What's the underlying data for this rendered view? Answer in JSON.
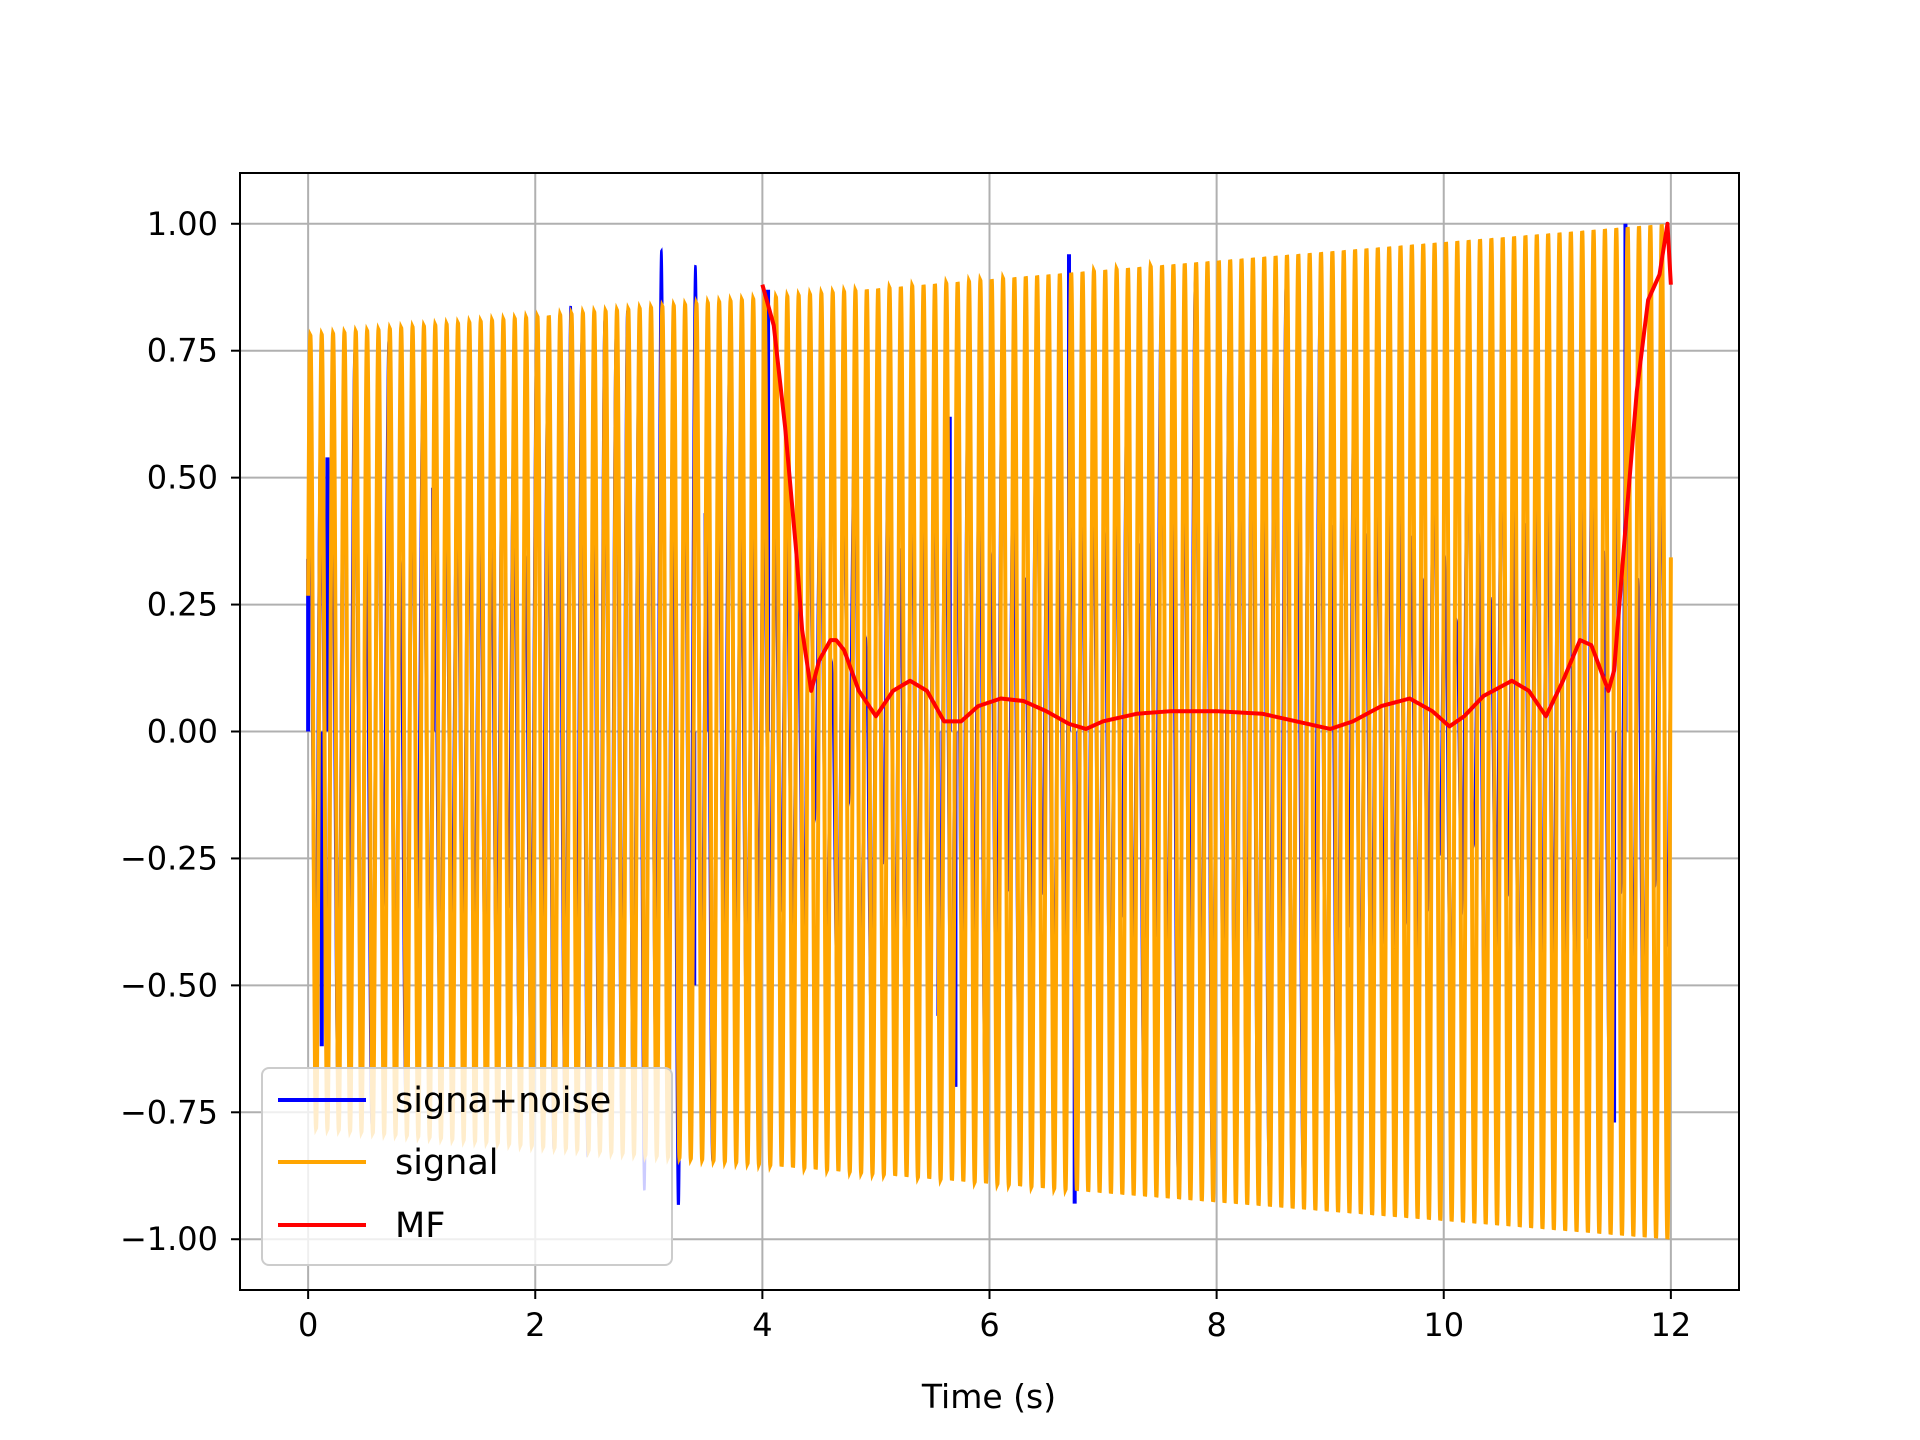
{
  "chart_data": {
    "type": "line",
    "title": "",
    "xlabel": "Time (s)",
    "ylabel": "",
    "xlim": [
      -0.6,
      12.6
    ],
    "ylim": [
      -1.1,
      1.1
    ],
    "xticks": [
      0,
      2,
      4,
      6,
      8,
      10,
      12
    ],
    "xtick_labels": [
      "0",
      "2",
      "4",
      "6",
      "8",
      "10",
      "12"
    ],
    "yticks": [
      1.0,
      0.75,
      0.5,
      0.25,
      0.0,
      -0.25,
      -0.5,
      -0.75,
      -1.0
    ],
    "ytick_labels": [
      "1.00",
      "0.75",
      "0.50",
      "0.25",
      "0.00",
      "−0.25",
      "−0.50",
      "−0.75",
      "−1.00"
    ],
    "grid": true,
    "legend_position": "lower-left",
    "series": [
      {
        "name": "signa+noise",
        "color": "#0000ff",
        "style": "noisy oscillation, t from 0 to 12 s, peaks between about -0.93 and 1.00",
        "samples": [
          {
            "x": 0.0,
            "y": 0.34
          },
          {
            "x": 0.12,
            "y": -0.62
          },
          {
            "x": 0.17,
            "y": 0.54
          },
          {
            "x": 1.1,
            "y": 0.48
          },
          {
            "x": 3.4,
            "y": -0.5
          },
          {
            "x": 3.5,
            "y": 0.43
          },
          {
            "x": 4.05,
            "y": 0.87
          },
          {
            "x": 5.55,
            "y": -0.56
          },
          {
            "x": 5.65,
            "y": 0.62
          },
          {
            "x": 5.7,
            "y": -0.7
          },
          {
            "x": 6.7,
            "y": 0.94
          },
          {
            "x": 6.75,
            "y": -0.93
          },
          {
            "x": 11.6,
            "y": 1.0
          },
          {
            "x": 11.5,
            "y": -0.77
          }
        ]
      },
      {
        "name": "signal",
        "color": "#ffa500",
        "style": "sinusoid, t from 0 to 12 s, about 120 cycles, amplitude growing linearly from 0.78 to 1.00"
      },
      {
        "name": "MF",
        "color": "#ff0000",
        "x": [
          4.0,
          4.1,
          4.2,
          4.3,
          4.35,
          4.43,
          4.5,
          4.6,
          4.65,
          4.72,
          4.85,
          5.0,
          5.15,
          5.3,
          5.45,
          5.6,
          5.75,
          5.9,
          6.1,
          6.3,
          6.5,
          6.7,
          6.85,
          7.0,
          7.3,
          7.6,
          8.0,
          8.4,
          8.7,
          9.0,
          9.2,
          9.45,
          9.7,
          9.9,
          10.05,
          10.18,
          10.35,
          10.6,
          10.75,
          10.9,
          11.05,
          11.2,
          11.3,
          11.45,
          11.5,
          11.6,
          11.7,
          11.8,
          11.9,
          11.97,
          12.0
        ],
        "y": [
          0.88,
          0.8,
          0.6,
          0.35,
          0.2,
          0.08,
          0.14,
          0.18,
          0.18,
          0.16,
          0.08,
          0.03,
          0.08,
          0.1,
          0.08,
          0.02,
          0.02,
          0.05,
          0.065,
          0.06,
          0.04,
          0.015,
          0.005,
          0.02,
          0.035,
          0.04,
          0.04,
          0.035,
          0.02,
          0.005,
          0.02,
          0.05,
          0.065,
          0.04,
          0.01,
          0.03,
          0.07,
          0.1,
          0.08,
          0.03,
          0.1,
          0.18,
          0.17,
          0.08,
          0.12,
          0.4,
          0.67,
          0.85,
          0.9,
          1.0,
          0.88
        ]
      }
    ]
  }
}
